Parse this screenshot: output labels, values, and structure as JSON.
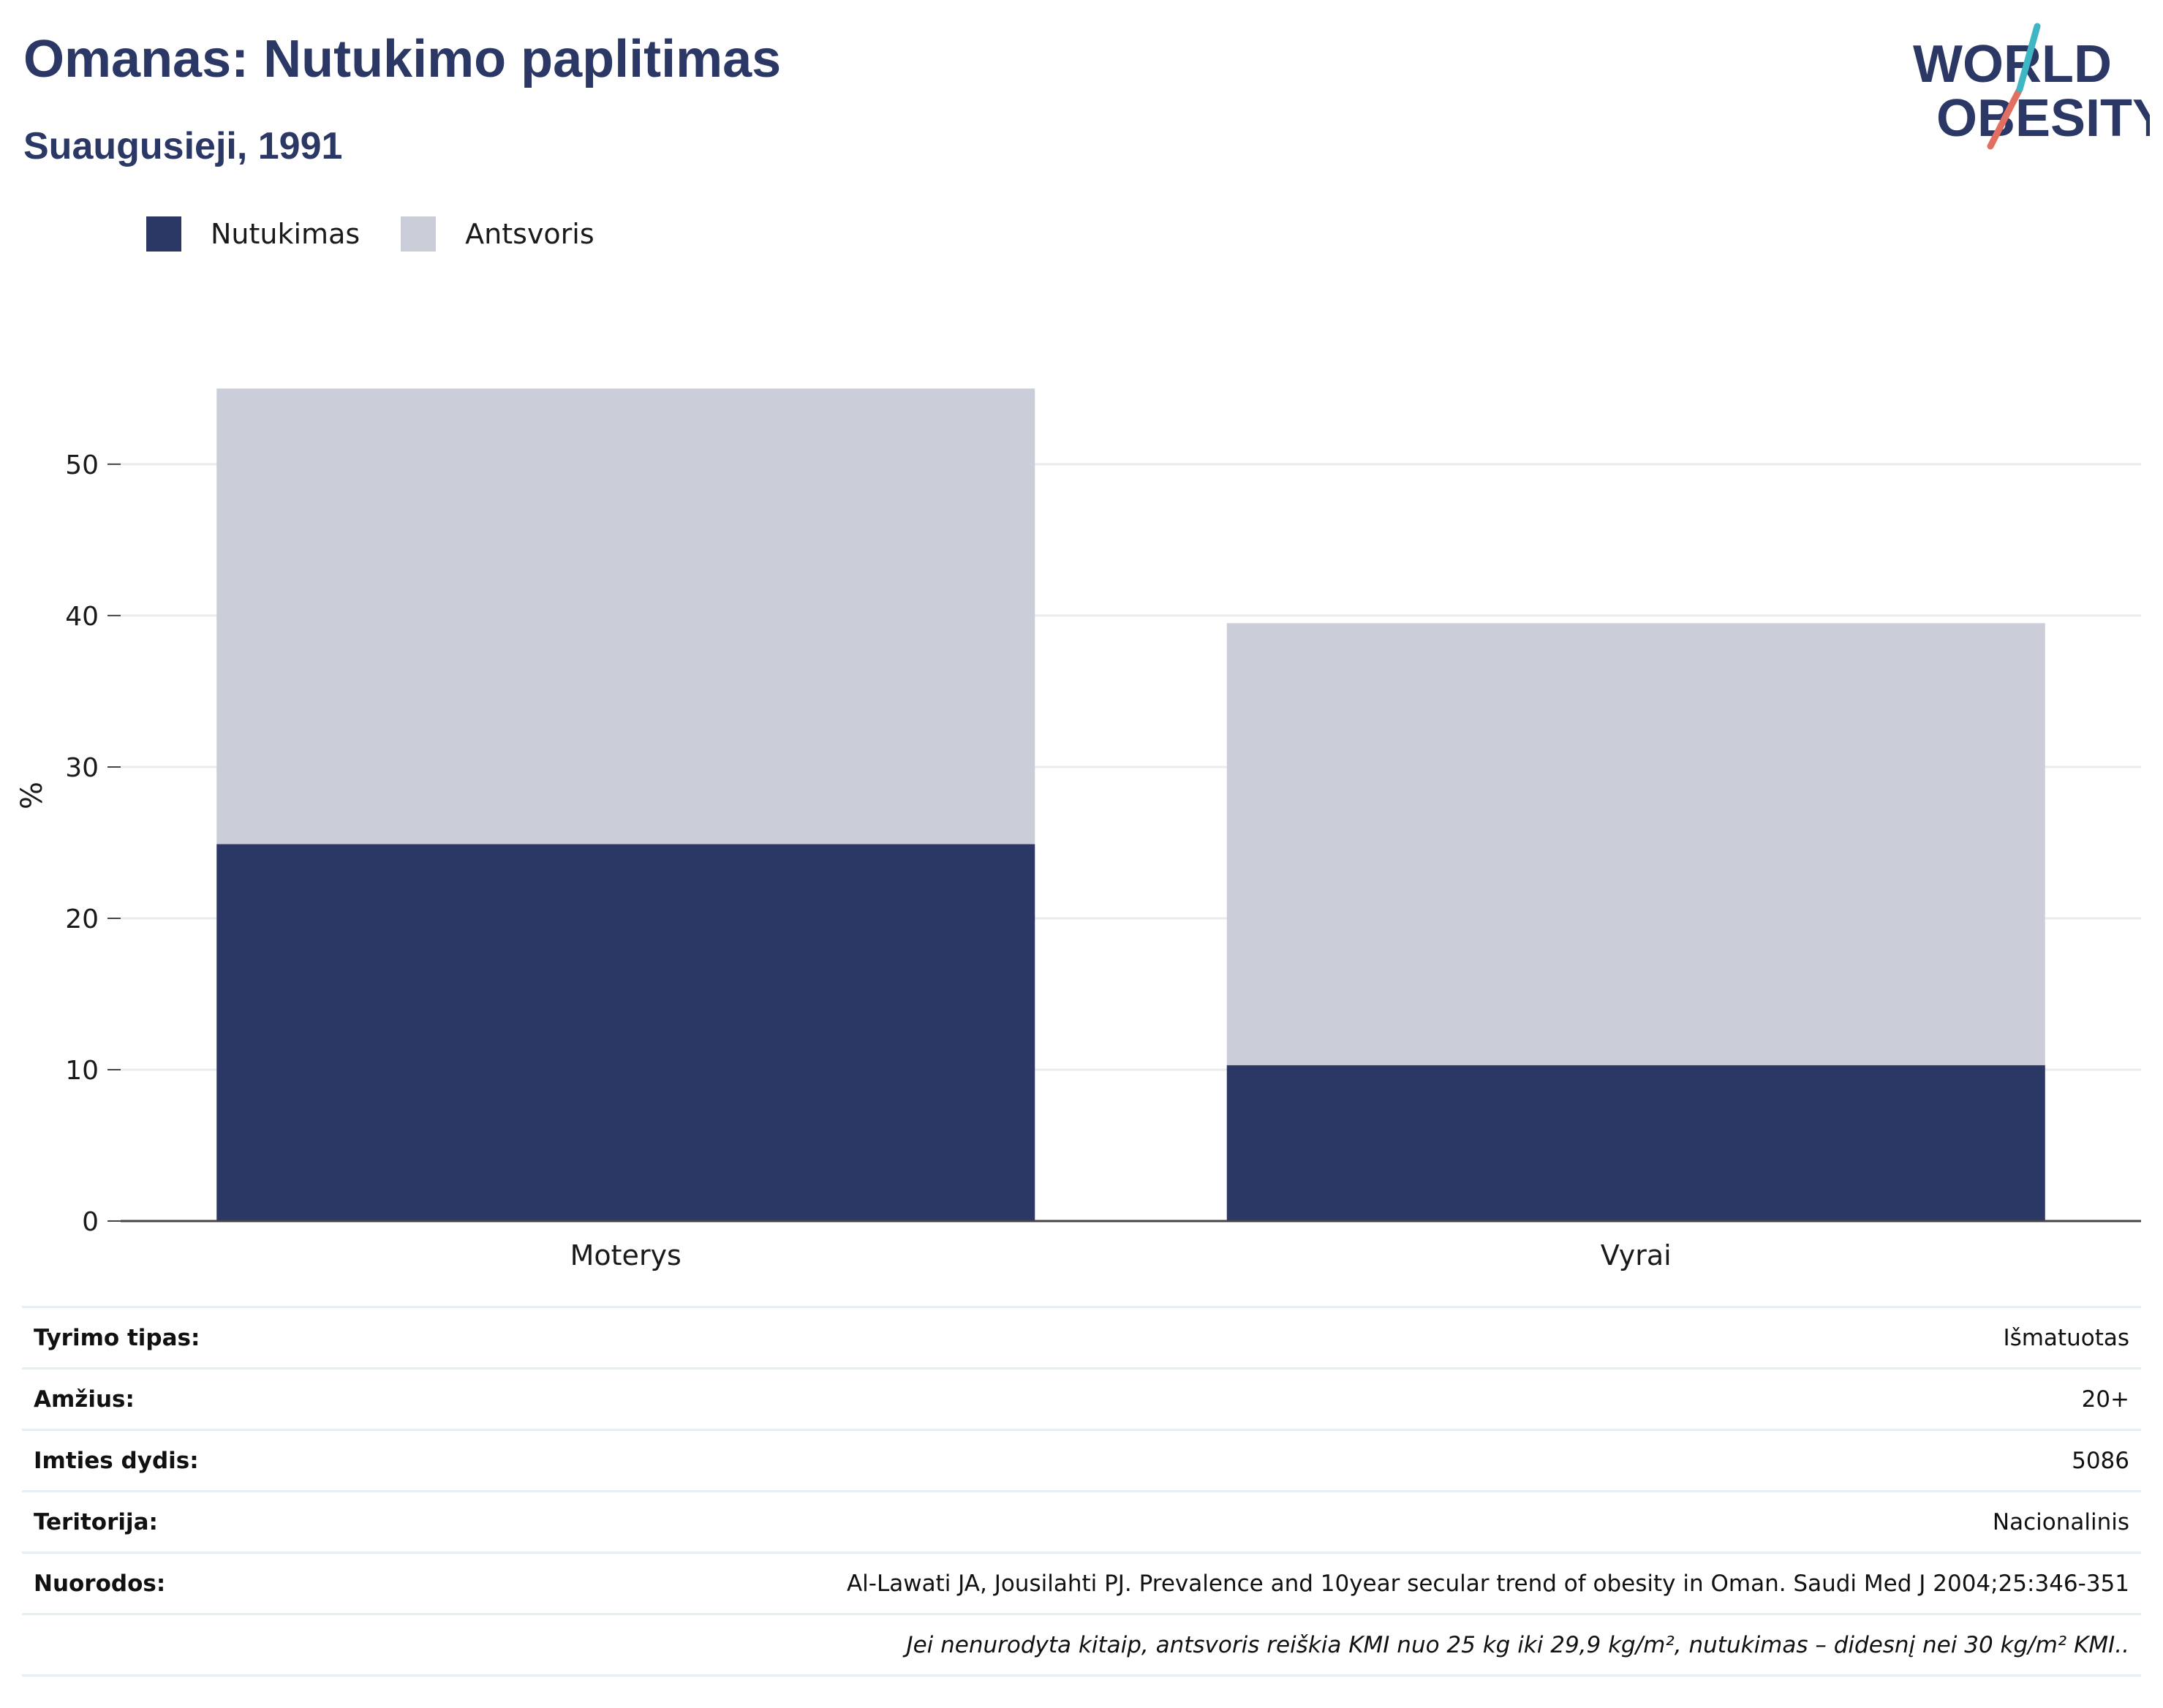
{
  "header": {
    "title": "Omanas: Nutukimo paplitimas",
    "subtitle": "Suaugusieji, 1991"
  },
  "logo": {
    "line1": "WORLD",
    "line2": "OBESITY"
  },
  "colors": {
    "obesity": "#2b3764",
    "overweight": "#cbcdd8",
    "title": "#2b3764",
    "grid": "#e9ecee",
    "axis": "#444444"
  },
  "chart_data": {
    "type": "bar",
    "stacked": true,
    "categories": [
      "Moterys",
      "Vyrai"
    ],
    "series": [
      {
        "name": "Nutukimas",
        "values": [
          24.9,
          10.3
        ]
      },
      {
        "name": "Antsvoris",
        "values": [
          30.1,
          29.2
        ]
      }
    ],
    "totals": [
      55.0,
      39.5
    ],
    "ylabel": "%",
    "ylim": [
      0,
      57
    ],
    "yticks": [
      0,
      10,
      20,
      30,
      40,
      50
    ],
    "grid": true,
    "legend_position": "top-left"
  },
  "info": {
    "rows": [
      {
        "label": "Tyrimo tipas:",
        "value": "Išmatuotas"
      },
      {
        "label": "Amžius:",
        "value": "20+"
      },
      {
        "label": "Imties dydis:",
        "value": "5086"
      },
      {
        "label": "Teritorija:",
        "value": "Nacionalinis"
      },
      {
        "label": "Nuorodos:",
        "value": "Al-Lawati JA, Jousilahti PJ. Prevalence and 10year secular trend of obesity in Oman. Saudi Med J 2004;25:346-351"
      }
    ],
    "note": "Jei nenurodyta kitaip, antsvoris reiškia KMI nuo 25 kg iki 29,9 kg/m², nutukimas – didesnį nei 30 kg/m² KMI.."
  }
}
